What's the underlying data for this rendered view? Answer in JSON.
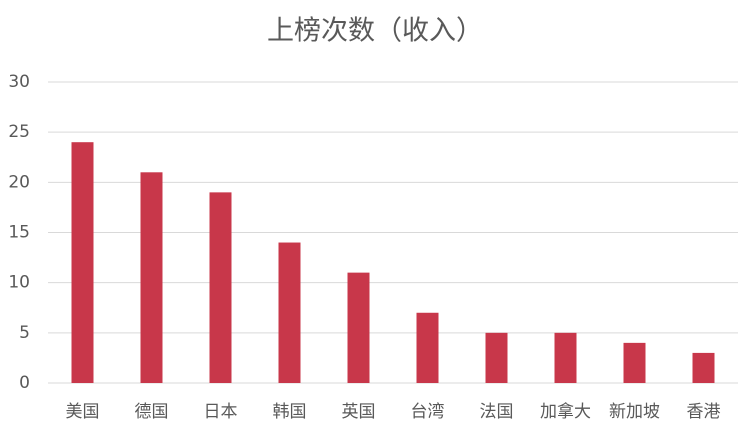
{
  "chart_data": {
    "type": "bar",
    "title": "上榜次数（收入）",
    "categories": [
      "美国",
      "德国",
      "日本",
      "韩国",
      "英国",
      "台湾",
      "法国",
      "加拿大",
      "新加坡",
      "香港"
    ],
    "values": [
      24,
      21,
      19,
      14,
      11,
      7,
      5,
      5,
      4,
      3
    ],
    "color": "#c8374a",
    "ylim": [
      0,
      30
    ],
    "yticks": [
      0,
      5,
      10,
      15,
      20,
      25,
      30
    ],
    "grid": true
  }
}
